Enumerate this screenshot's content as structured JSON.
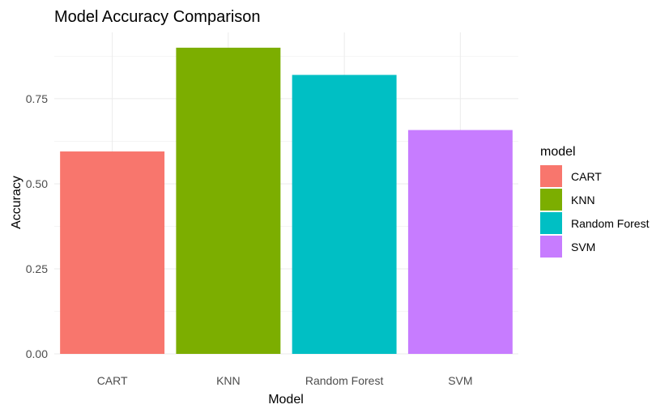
{
  "chart_data": {
    "type": "bar",
    "title": "Model Accuracy Comparison",
    "xlabel": "Model",
    "ylabel": "Accuracy",
    "categories": [
      "CART",
      "KNN",
      "Random Forest",
      "SVM"
    ],
    "values": [
      0.595,
      0.9,
      0.82,
      0.658
    ],
    "colors": [
      "#F8766D",
      "#7CAE00",
      "#00BFC4",
      "#C77CFF"
    ],
    "ylim": [
      0,
      0.945
    ],
    "yticks": [
      0,
      0.25,
      0.5,
      0.75
    ],
    "ytick_labels": [
      "0.00",
      "0.25",
      "0.50",
      "0.75"
    ],
    "grid": true,
    "legend": {
      "title": "model",
      "placement": "right",
      "entries": [
        "CART",
        "KNN",
        "Random Forest",
        "SVM"
      ]
    }
  }
}
